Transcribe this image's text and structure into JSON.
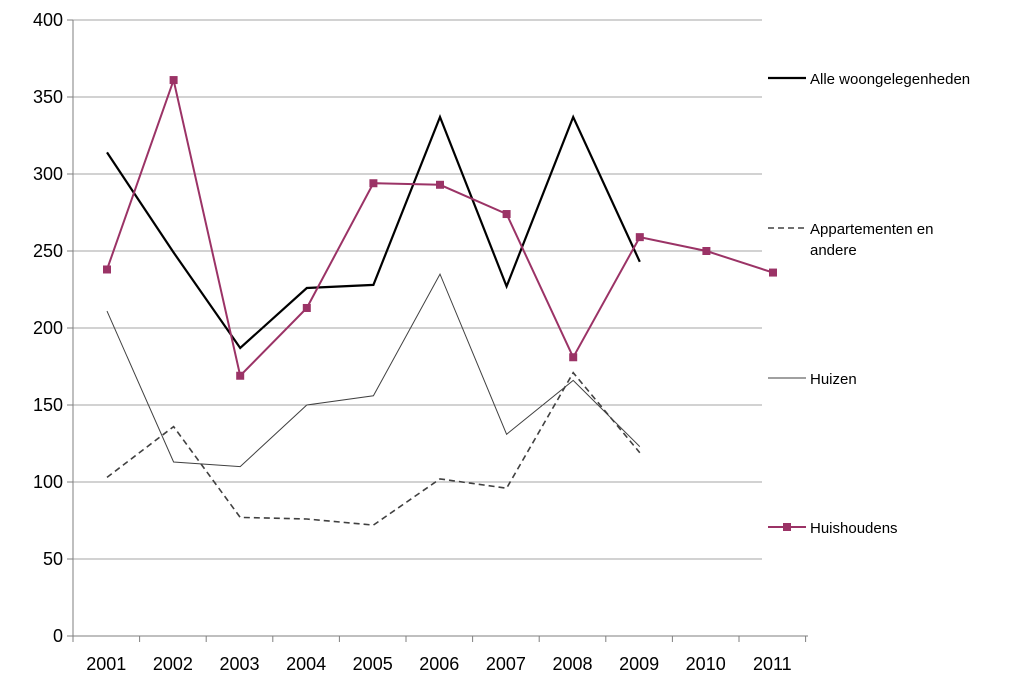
{
  "chart_data": {
    "type": "line",
    "title": "",
    "xlabel": "",
    "ylabel": "",
    "categories": [
      "2001",
      "2002",
      "2003",
      "2004",
      "2005",
      "2006",
      "2007",
      "2008",
      "2009",
      "2010",
      "2011"
    ],
    "ylim": [
      0,
      400
    ],
    "yticks": [
      "0",
      "50",
      "100",
      "150",
      "200",
      "250",
      "300",
      "350",
      "400"
    ],
    "grid": true,
    "legend_position": "right",
    "series": [
      {
        "name": "Alle woongelegenheden",
        "style": "solid-thick",
        "color": "#000000",
        "x": [
          2001,
          2002,
          2003,
          2004,
          2005,
          2006,
          2007,
          2008,
          2009
        ],
        "values": [
          314,
          249,
          187,
          226,
          228,
          337,
          227,
          337,
          243
        ]
      },
      {
        "name": "Appartementen en andere",
        "style": "dashed",
        "color": "#404040",
        "x": [
          2001,
          2002,
          2003,
          2004,
          2005,
          2006,
          2007,
          2008,
          2009
        ],
        "values": [
          103,
          136,
          77,
          76,
          72,
          102,
          96,
          171,
          119
        ]
      },
      {
        "name": "Huizen",
        "style": "solid-thin",
        "color": "#404040",
        "x": [
          2001,
          2002,
          2003,
          2004,
          2005,
          2006,
          2007,
          2008,
          2009
        ],
        "values": [
          211,
          113,
          110,
          150,
          156,
          235,
          131,
          166,
          123
        ]
      },
      {
        "name": "Huishoudens",
        "style": "solid-markers",
        "color": "#9b3366",
        "x": [
          2001,
          2002,
          2003,
          2004,
          2005,
          2006,
          2007,
          2008,
          2009,
          2010,
          2011
        ],
        "values": [
          238,
          361,
          169,
          213,
          294,
          293,
          274,
          181,
          259,
          250,
          236
        ]
      }
    ],
    "legend": [
      {
        "label_lines": [
          "Alle woongelegenheden"
        ]
      },
      {
        "label_lines": [
          "Appartementen en",
          "andere"
        ]
      },
      {
        "label_lines": [
          "Huizen"
        ]
      },
      {
        "label_lines": [
          "Huishoudens"
        ]
      }
    ]
  }
}
